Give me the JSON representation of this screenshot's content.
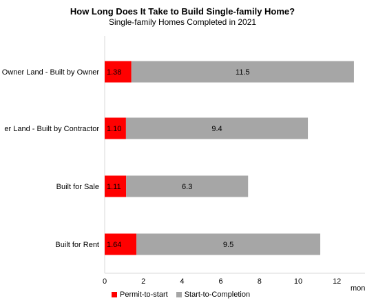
{
  "chart_data": {
    "type": "bar",
    "orientation": "horizontal",
    "stacked": true,
    "title": "How Long Does It Take to Build  Single-family  Home?",
    "subtitle": "Single-family  Homes  Completed  in 2021",
    "xlabel": "mon",
    "xlim": [
      0,
      13
    ],
    "x_ticks": [
      "0",
      "2",
      "4",
      "6",
      "8",
      "10",
      "12"
    ],
    "categories": [
      "Owner Land - Built by Owner",
      "er Land - Built by Contractor",
      "Built for Sale",
      "Built for Rent"
    ],
    "series": [
      {
        "name": "Permit-to-start",
        "color": "#ff0000",
        "values": [
          1.38,
          1.1,
          1.11,
          1.64
        ],
        "labels": [
          "1.38",
          "1.10",
          "1.11",
          "1.64"
        ]
      },
      {
        "name": "Start-to-Completion",
        "color": "#a6a6a6",
        "values": [
          11.5,
          9.4,
          6.3,
          9.5
        ],
        "labels": [
          "11.5",
          "9.4",
          "6.3",
          "9.5"
        ]
      }
    ],
    "legend_position": "bottom",
    "grid": false
  }
}
